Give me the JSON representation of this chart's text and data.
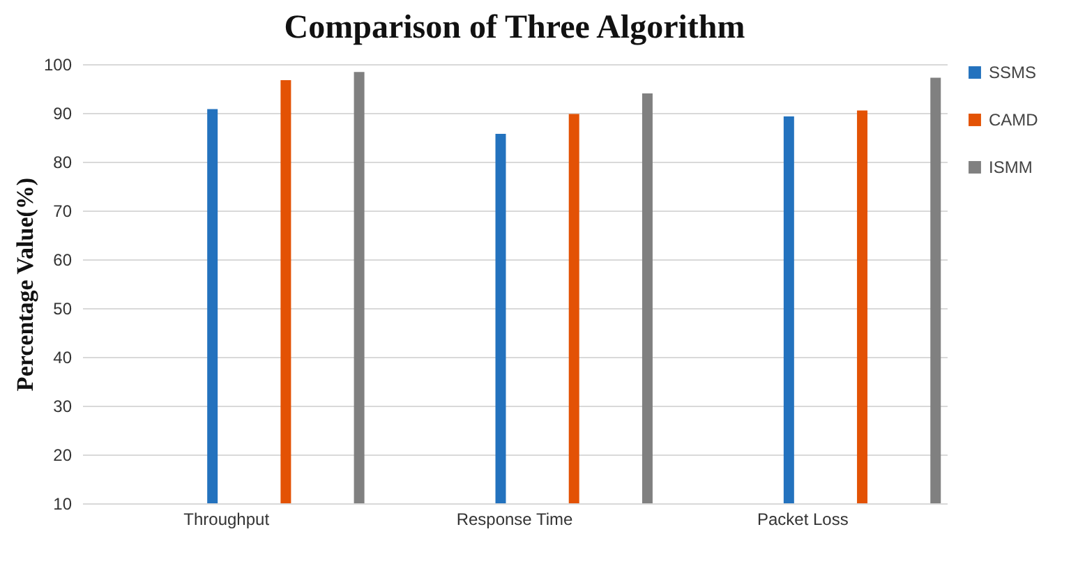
{
  "chart_data": {
    "type": "bar",
    "title": "Comparison of Three Algorithm",
    "ylabel": "Percentage Value(%)",
    "categories": [
      "Throughput",
      "Response Time",
      "Packet Loss"
    ],
    "series": [
      {
        "name": "SSMS",
        "color": "#2372be",
        "values": [
          90.8,
          85.7,
          89.3
        ]
      },
      {
        "name": "CAMD",
        "color": "#e35205",
        "values": [
          96.7,
          89.8,
          90.5
        ]
      },
      {
        "name": "ISMM",
        "color": "#808080",
        "values": [
          98.4,
          94,
          97.2
        ]
      }
    ],
    "ylim": [
      10,
      100
    ],
    "yticks": [
      10,
      20,
      30,
      40,
      50,
      60,
      70,
      80,
      90,
      100
    ],
    "grid": "y",
    "legend": "top right"
  }
}
